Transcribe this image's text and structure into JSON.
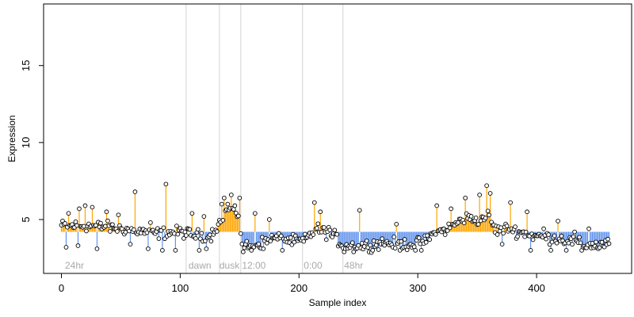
{
  "chart_data": {
    "type": "scatter",
    "xlabel": "Sample index",
    "ylabel": "Expression",
    "xlim": [
      -15,
      480
    ],
    "ylim": [
      1.5,
      19.0
    ],
    "xticks": [
      0,
      100,
      200,
      300,
      400
    ],
    "yticks": [
      5,
      10,
      15
    ],
    "n_samples": 462,
    "reference_level": 4.2,
    "colors": {
      "above": "#ffa500",
      "below": "#6495ed",
      "separator": "#d3d3d3",
      "region_label": "#a9a9a9",
      "point_stroke": "#000000"
    },
    "region_lines": [
      105,
      133,
      151,
      203,
      237
    ],
    "regions": [
      {
        "x": 3,
        "label": "24hr"
      },
      {
        "x": 107,
        "label": "dawn"
      },
      {
        "x": 133,
        "label": "dusk"
      },
      {
        "x": 152,
        "label": "12:00"
      },
      {
        "x": 204,
        "label": "0:00"
      },
      {
        "x": 238,
        "label": "48hr"
      }
    ],
    "level_profile": [
      [
        0,
        4.6
      ],
      [
        20,
        4.6
      ],
      [
        40,
        4.5
      ],
      [
        60,
        4.3
      ],
      [
        80,
        4.1
      ],
      [
        100,
        4.2
      ],
      [
        112,
        4.0
      ],
      [
        125,
        3.9
      ],
      [
        133,
        4.8
      ],
      [
        140,
        5.8
      ],
      [
        150,
        5.3
      ],
      [
        152,
        3.2
      ],
      [
        165,
        3.4
      ],
      [
        180,
        3.8
      ],
      [
        195,
        3.6
      ],
      [
        204,
        3.6
      ],
      [
        215,
        4.4
      ],
      [
        230,
        3.9
      ],
      [
        237,
        3.3
      ],
      [
        255,
        3.3
      ],
      [
        270,
        3.5
      ],
      [
        290,
        3.4
      ],
      [
        305,
        3.5
      ],
      [
        312,
        4.0
      ],
      [
        325,
        4.4
      ],
      [
        340,
        5.1
      ],
      [
        350,
        5.0
      ],
      [
        360,
        5.3
      ],
      [
        365,
        4.3
      ],
      [
        375,
        4.4
      ],
      [
        385,
        4.2
      ],
      [
        400,
        3.9
      ],
      [
        415,
        3.8
      ],
      [
        430,
        3.6
      ],
      [
        440,
        3.3
      ],
      [
        462,
        3.4
      ]
    ],
    "spikes": [
      [
        6,
        5.4
      ],
      [
        15,
        5.7
      ],
      [
        20,
        5.9
      ],
      [
        26,
        5.8
      ],
      [
        38,
        5.5
      ],
      [
        48,
        5.3
      ],
      [
        62,
        6.8
      ],
      [
        75,
        4.8
      ],
      [
        88,
        7.3
      ],
      [
        110,
        5.4
      ],
      [
        120,
        5.2
      ],
      [
        135,
        6.0
      ],
      [
        137,
        6.4
      ],
      [
        140,
        6.0
      ],
      [
        143,
        6.6
      ],
      [
        146,
        5.9
      ],
      [
        150,
        6.4
      ],
      [
        163,
        5.4
      ],
      [
        175,
        5.0
      ],
      [
        213,
        6.1
      ],
      [
        218,
        5.5
      ],
      [
        225,
        4.5
      ],
      [
        251,
        5.6
      ],
      [
        282,
        4.7
      ],
      [
        316,
        5.9
      ],
      [
        328,
        5.7
      ],
      [
        340,
        6.4
      ],
      [
        352,
        6.6
      ],
      [
        358,
        7.2
      ],
      [
        361,
        6.7
      ],
      [
        378,
        6.1
      ],
      [
        392,
        5.5
      ],
      [
        406,
        4.4
      ],
      [
        418,
        4.9
      ],
      [
        432,
        4.2
      ],
      [
        444,
        4.4
      ]
    ],
    "dips": [
      [
        4,
        3.2
      ],
      [
        14,
        3.3
      ],
      [
        30,
        3.1
      ],
      [
        58,
        3.4
      ],
      [
        73,
        3.1
      ],
      [
        85,
        3.0
      ],
      [
        96,
        3.0
      ],
      [
        116,
        3.0
      ],
      [
        122,
        3.1
      ],
      [
        153,
        2.9
      ],
      [
        160,
        3.0
      ],
      [
        170,
        3.1
      ],
      [
        186,
        3.0
      ],
      [
        238,
        2.9
      ],
      [
        246,
        2.9
      ],
      [
        262,
        3.0
      ],
      [
        285,
        3.0
      ],
      [
        298,
        3.0
      ],
      [
        303,
        3.0
      ],
      [
        371,
        3.4
      ],
      [
        395,
        3.0
      ],
      [
        412,
        3.0
      ],
      [
        425,
        3.0
      ],
      [
        438,
        3.0
      ],
      [
        452,
        3.1
      ]
    ]
  }
}
